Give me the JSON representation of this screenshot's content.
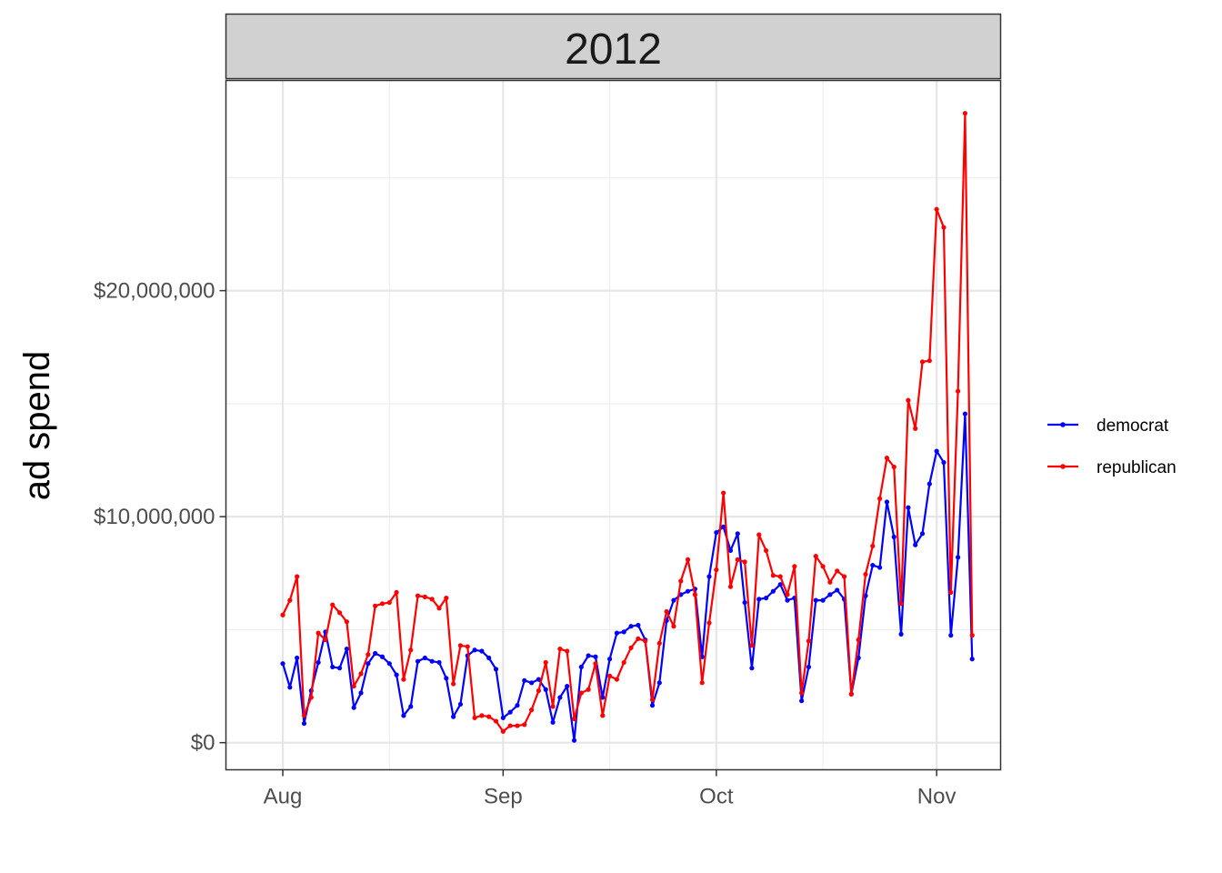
{
  "chart_data": {
    "type": "line",
    "panel_title": "2012",
    "xlabel": "",
    "ylabel": "ad spend",
    "x_axis": {
      "type": "date",
      "range": [
        "2012-07-24",
        "2012-11-10"
      ],
      "ticks": [
        {
          "date": "2012-08-01",
          "label": "Aug"
        },
        {
          "date": "2012-09-01",
          "label": "Sep"
        },
        {
          "date": "2012-10-01",
          "label": "Oct"
        },
        {
          "date": "2012-11-01",
          "label": "Nov"
        }
      ],
      "minor_ticks": [
        "2012-08-16",
        "2012-09-16",
        "2012-10-16"
      ]
    },
    "y_axis": {
      "range": [
        -1200000,
        29300000
      ],
      "ticks": [
        {
          "value": 0,
          "label": "$0"
        },
        {
          "value": 10000000,
          "label": "$10,000,000"
        },
        {
          "value": 20000000,
          "label": "$20,000,000"
        }
      ],
      "minor_ticks": [
        5000000,
        15000000,
        25000000
      ]
    },
    "grid": true,
    "legend_position": "right",
    "start_date": "2012-08-01",
    "series": [
      {
        "name": "democrat",
        "color": "#0000ff",
        "values": [
          3500000,
          2450000,
          3750000,
          850000,
          2300000,
          3550000,
          4900000,
          3350000,
          3300000,
          4150000,
          1550000,
          2200000,
          3500000,
          3950000,
          3800000,
          3500000,
          3000000,
          1200000,
          1600000,
          3600000,
          3750000,
          3600000,
          3550000,
          2850000,
          1150000,
          1700000,
          3850000,
          4100000,
          4050000,
          3750000,
          3250000,
          1100000,
          1350000,
          1650000,
          2750000,
          2650000,
          2800000,
          2350000,
          900000,
          2000000,
          2500000,
          100000,
          3350000,
          3850000,
          3800000,
          2000000,
          3700000,
          4850000,
          4900000,
          5150000,
          5200000,
          4550000,
          1650000,
          2650000,
          5400000,
          6300000,
          6550000,
          6700000,
          6800000,
          3800000,
          7350000,
          9300000,
          9550000,
          8500000,
          9250000,
          6200000,
          3300000,
          6350000,
          6400000,
          6700000,
          7000000,
          6300000,
          6400000,
          1850000,
          3350000,
          6300000,
          6300000,
          6550000,
          6750000,
          6350000,
          2150000,
          3750000,
          6500000,
          7850000,
          7750000,
          10650000,
          9100000,
          4800000,
          10400000,
          8750000,
          9250000,
          11450000,
          12900000,
          12400000,
          4750000,
          8200000,
          14550000,
          3700000
        ]
      },
      {
        "name": "republican",
        "color": "#ff0000",
        "values": [
          5650000,
          6300000,
          7350000,
          1200000,
          2000000,
          4850000,
          4550000,
          6100000,
          5750000,
          5350000,
          2500000,
          3050000,
          3900000,
          6050000,
          6150000,
          6200000,
          6650000,
          2800000,
          4100000,
          6500000,
          6450000,
          6350000,
          5950000,
          6400000,
          2600000,
          4300000,
          4250000,
          1100000,
          1200000,
          1150000,
          950000,
          500000,
          750000,
          750000,
          800000,
          1450000,
          2300000,
          3550000,
          1600000,
          4150000,
          4050000,
          1050000,
          2200000,
          2350000,
          3500000,
          1200000,
          2950000,
          2800000,
          3550000,
          4200000,
          4600000,
          4500000,
          1900000,
          4400000,
          5800000,
          5150000,
          7150000,
          8100000,
          6550000,
          2650000,
          5300000,
          7650000,
          11050000,
          6900000,
          8100000,
          8000000,
          4300000,
          9200000,
          8500000,
          7400000,
          7350000,
          6550000,
          7800000,
          2200000,
          4500000,
          8250000,
          7800000,
          7100000,
          7600000,
          7350000,
          2150000,
          4550000,
          7450000,
          8700000,
          10800000,
          12600000,
          12200000,
          6150000,
          15150000,
          13900000,
          16850000,
          16900000,
          23600000,
          22800000,
          6650000,
          15550000,
          27850000,
          4750000
        ]
      }
    ]
  }
}
